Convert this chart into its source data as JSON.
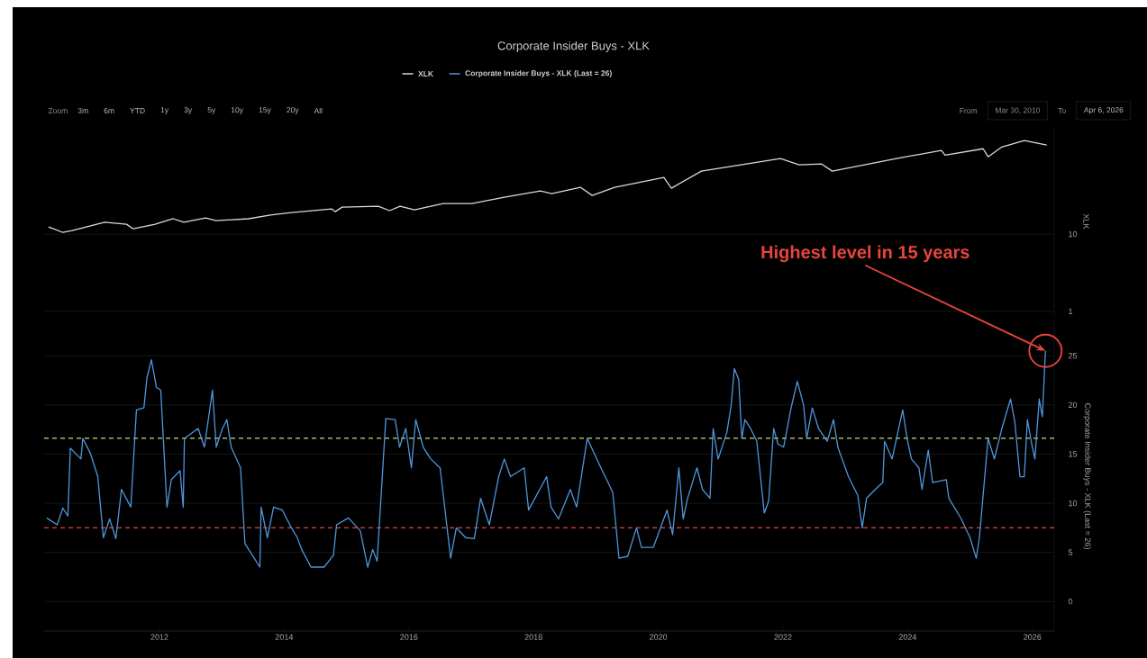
{
  "chart_data": [
    {
      "type": "line",
      "title": "Corporate Insider Buys - XLK",
      "ylabel": "XLK",
      "log": "y",
      "grid": "y",
      "legend": "top",
      "tick_labels": "y",
      "xlim": [
        2010.15,
        2026.35
      ],
      "xticks": [
        2012,
        2014,
        2016,
        2018,
        2020,
        2022,
        2024,
        2026
      ],
      "ylim": [
        0.85,
        250
      ],
      "yticks": [
        1,
        10
      ],
      "series": [
        {
          "name": "XLK",
          "color": "#d9d9d9",
          "x": [
            2010.22,
            2010.45,
            2010.6,
            2011.12,
            2011.47,
            2011.58,
            2011.93,
            2012.22,
            2012.39,
            2012.74,
            2012.91,
            2013.43,
            2013.78,
            2014.12,
            2014.76,
            2014.82,
            2014.93,
            2015.51,
            2015.69,
            2015.86,
            2016.09,
            2016.55,
            2017.01,
            2017.53,
            2018.11,
            2018.29,
            2018.75,
            2018.94,
            2019.3,
            2020.09,
            2020.21,
            2020.69,
            2021.96,
            2022.26,
            2022.62,
            2022.79,
            2023.82,
            2024.54,
            2024.6,
            2025.21,
            2025.29,
            2025.51,
            2025.87,
            2026.23
          ],
          "values": [
            12.4,
            10.5,
            11.1,
            14.2,
            13.4,
            11.7,
            13.4,
            15.8,
            14.2,
            16.2,
            14.9,
            15.8,
            17.6,
            19.0,
            21.2,
            19.5,
            22.3,
            22.9,
            20.1,
            22.9,
            20.6,
            24.9,
            24.9,
            30.0,
            36.2,
            33.4,
            40.3,
            31.6,
            40.3,
            54.0,
            39.2,
            65.2,
            94.8,
            78.6,
            80.7,
            65.2,
            94.8,
            121,
            105,
            127,
            100,
            134,
            162,
            142
          ]
        }
      ]
    },
    {
      "type": "line",
      "ylabel": "Corporate Insider Buys - XLK (Last = 26)",
      "grid": "y",
      "legend": "top",
      "xlim": [
        2010.15,
        2026.35
      ],
      "xticks": [
        2012,
        2014,
        2016,
        2018,
        2020,
        2022,
        2024,
        2026
      ],
      "ylim": [
        -3,
        28.5
      ],
      "yticks": [
        0,
        5,
        10,
        15,
        20,
        25
      ],
      "series": [
        {
          "name": "Corporate Insider Buys - XLK (Last = 26)",
          "color": "#4f96dc",
          "x": [
            2010.19,
            2010.36,
            2010.45,
            2010.53,
            2010.57,
            2010.74,
            2010.77,
            2010.89,
            2011.01,
            2011.1,
            2011.2,
            2011.3,
            2011.39,
            2011.54,
            2011.63,
            2011.75,
            2011.8,
            2011.87,
            2011.95,
            2012.02,
            2012.12,
            2012.19,
            2012.33,
            2012.38,
            2012.4,
            2012.62,
            2012.72,
            2012.85,
            2012.91,
            2013.01,
            2013.08,
            2013.15,
            2013.3,
            2013.37,
            2013.49,
            2013.61,
            2013.63,
            2013.73,
            2013.83,
            2013.97,
            2014.09,
            2014.21,
            2014.28,
            2014.43,
            2014.64,
            2014.79,
            2014.84,
            2015.03,
            2015.22,
            2015.34,
            2015.42,
            2015.49,
            2015.63,
            2015.78,
            2015.85,
            2015.95,
            2016.04,
            2016.11,
            2016.23,
            2016.35,
            2016.5,
            2016.67,
            2016.76,
            2016.91,
            2017.05,
            2017.15,
            2017.29,
            2017.44,
            2017.53,
            2017.63,
            2017.85,
            2017.92,
            2018.21,
            2018.28,
            2018.4,
            2018.59,
            2018.69,
            2018.86,
            2019.08,
            2019.27,
            2019.37,
            2019.51,
            2019.65,
            2019.73,
            2019.92,
            2020.14,
            2020.23,
            2020.33,
            2020.4,
            2020.47,
            2020.62,
            2020.71,
            2020.83,
            2020.88,
            2020.96,
            2021.1,
            2021.17,
            2021.22,
            2021.29,
            2021.34,
            2021.39,
            2021.48,
            2021.58,
            2021.7,
            2021.77,
            2021.85,
            2021.92,
            2022.01,
            2022.13,
            2022.23,
            2022.33,
            2022.38,
            2022.47,
            2022.57,
            2022.71,
            2022.81,
            2022.88,
            2023.05,
            2023.2,
            2023.27,
            2023.34,
            2023.48,
            2023.6,
            2023.63,
            2023.75,
            2023.92,
            2023.99,
            2024.06,
            2024.18,
            2024.23,
            2024.33,
            2024.4,
            2024.62,
            2024.66,
            2024.86,
            2025.0,
            2025.1,
            2025.15,
            2025.29,
            2025.39,
            2025.51,
            2025.65,
            2025.72,
            2025.8,
            2025.87,
            2025.92,
            2025.99,
            2026.04,
            2026.11,
            2026.16,
            2026.21
          ],
          "values": [
            8.5,
            7.8,
            9.5,
            8.7,
            15.6,
            14.5,
            16.6,
            15.1,
            12.7,
            6.5,
            8.4,
            6.4,
            11.4,
            9.6,
            19.5,
            19.7,
            22.8,
            24.6,
            21.8,
            21.5,
            9.6,
            12.4,
            13.3,
            9.6,
            16.6,
            17.6,
            15.7,
            21.5,
            15.7,
            17.6,
            18.5,
            15.7,
            13.6,
            5.9,
            4.7,
            3.5,
            9.6,
            6.5,
            9.6,
            9.3,
            7.8,
            6.5,
            5.3,
            3.5,
            3.5,
            4.7,
            7.8,
            8.5,
            7.2,
            3.5,
            5.3,
            4.1,
            18.6,
            18.5,
            15.7,
            17.6,
            13.6,
            18.5,
            15.7,
            14.5,
            13.6,
            4.4,
            7.5,
            6.5,
            6.4,
            10.5,
            7.8,
            12.7,
            14.5,
            12.7,
            13.6,
            9.3,
            12.7,
            9.6,
            8.4,
            11.4,
            9.6,
            16.6,
            13.6,
            11.1,
            4.4,
            4.6,
            7.5,
            5.5,
            5.5,
            9.3,
            6.8,
            13.6,
            8.4,
            10.5,
            13.6,
            11.4,
            10.5,
            17.6,
            14.5,
            17.2,
            20.0,
            23.7,
            22.6,
            16.6,
            18.5,
            17.6,
            16.3,
            9.0,
            10.2,
            17.6,
            16.0,
            15.7,
            19.7,
            22.4,
            20.0,
            16.6,
            19.7,
            17.6,
            16.3,
            18.5,
            15.7,
            12.7,
            10.8,
            7.5,
            10.5,
            11.4,
            12.1,
            16.3,
            14.5,
            19.5,
            16.6,
            14.5,
            13.6,
            11.4,
            15.4,
            12.1,
            12.4,
            10.5,
            8.4,
            6.5,
            4.4,
            6.5,
            16.6,
            14.5,
            17.6,
            20.6,
            18.2,
            12.7,
            12.7,
            18.5,
            16.0,
            14.5,
            20.6,
            18.8,
            25.5
          ]
        }
      ],
      "ref_lines": [
        {
          "axis": "y",
          "value": 16.6,
          "color": "#c9df72",
          "line_style": "dashed"
        },
        {
          "axis": "y",
          "value": 7.5,
          "color": "#e0433a",
          "line_style": "dashed"
        }
      ],
      "annotations": [
        {
          "text": "Highest level in 15 years",
          "x": 2026.21,
          "y": 25.5
        },
        "Zoom",
        "3m",
        "6m",
        "YTD",
        "1y",
        "3y",
        "5y",
        "10y",
        "15y",
        "20y",
        "All",
        "From",
        "Mar 30, 2010",
        "To",
        "Apr 6, 2026"
      ]
    }
  ]
}
